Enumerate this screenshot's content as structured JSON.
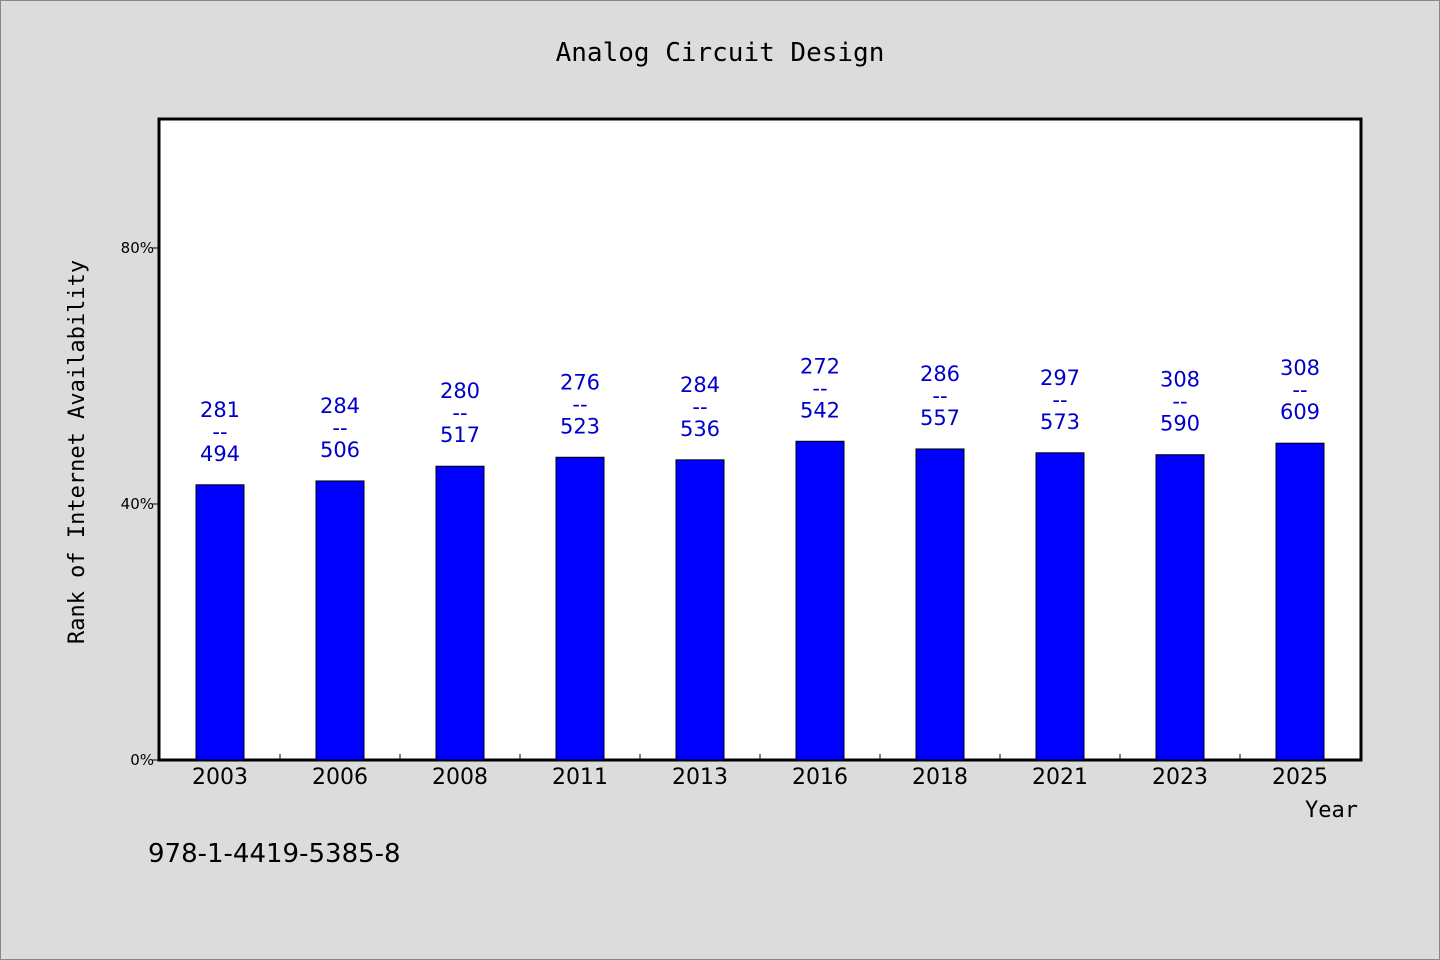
{
  "chart_data": {
    "type": "bar",
    "title": "Analog Circuit Design",
    "xlabel": "Year",
    "ylabel": "Rank of Internet Availability",
    "categories": [
      "2003",
      "2006",
      "2008",
      "2011",
      "2013",
      "2016",
      "2018",
      "2021",
      "2023",
      "2025"
    ],
    "values": [
      0.43,
      0.436,
      0.459,
      0.473,
      0.469,
      0.498,
      0.486,
      0.48,
      0.477,
      0.495
    ],
    "data_labels": [
      [
        "281",
        "--",
        "494"
      ],
      [
        "284",
        "--",
        "506"
      ],
      [
        "280",
        "--",
        "517"
      ],
      [
        "276",
        "--",
        "523"
      ],
      [
        "284",
        "--",
        "536"
      ],
      [
        "272",
        "--",
        "542"
      ],
      [
        "286",
        "--",
        "557"
      ],
      [
        "297",
        "--",
        "573"
      ],
      [
        "308",
        "--",
        "590"
      ],
      [
        "308",
        "--",
        "609"
      ]
    ],
    "yticks": [
      0,
      0.4,
      0.8
    ],
    "ytick_labels": [
      "0%",
      "40%",
      "80%"
    ],
    "ylim": [
      0,
      1.0
    ],
    "grid": false,
    "bar_color": "#0000ff",
    "label_color": "#0000cc"
  },
  "footer": {
    "isbn": "978-1-4419-5385-8"
  }
}
